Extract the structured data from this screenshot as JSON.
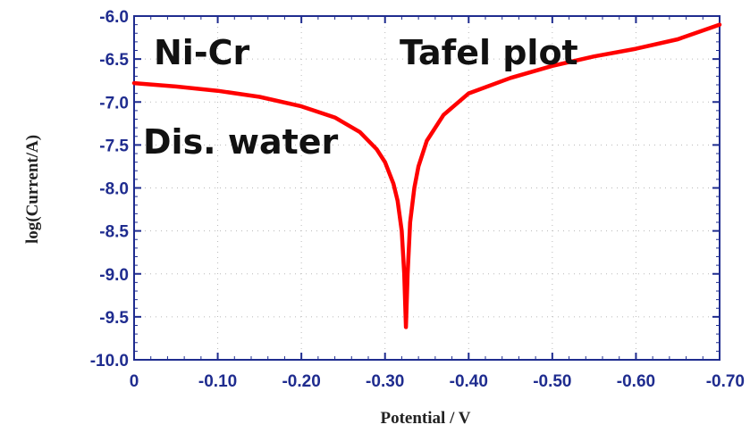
{
  "chart_data": {
    "type": "line",
    "xlabel": "Potential / V",
    "ylabel": "log(Current/A)",
    "xlim": [
      0,
      -0.7
    ],
    "ylim": [
      -10.0,
      -6.0
    ],
    "x_ticks": [
      "0",
      "-0.10",
      "-0.20",
      "-0.30",
      "-0.40",
      "-0.50",
      "-0.60",
      "-0.70"
    ],
    "y_ticks": [
      "-6.0",
      "-6.5",
      "-7.0",
      "-7.5",
      "-8.0",
      "-8.5",
      "-9.0",
      "-9.5",
      "-10.0"
    ],
    "grid": true,
    "annotations": [
      "Ni-Cr",
      "Tafel plot",
      "Dis. water"
    ],
    "series": [
      {
        "color": "#ff0000",
        "x": [
          0,
          -0.05,
          -0.1,
          -0.15,
          -0.2,
          -0.24,
          -0.27,
          -0.29,
          -0.3,
          -0.31,
          -0.315,
          -0.32,
          -0.323,
          -0.325,
          -0.327,
          -0.33,
          -0.335,
          -0.34,
          -0.35,
          -0.37,
          -0.4,
          -0.45,
          -0.5,
          -0.55,
          -0.6,
          -0.65,
          -0.7
        ],
        "y": [
          -6.78,
          -6.82,
          -6.87,
          -6.94,
          -7.05,
          -7.18,
          -7.35,
          -7.55,
          -7.7,
          -7.95,
          -8.15,
          -8.5,
          -9.0,
          -9.62,
          -9.0,
          -8.4,
          -8.0,
          -7.75,
          -7.45,
          -7.15,
          -6.9,
          -6.72,
          -6.58,
          -6.47,
          -6.38,
          -6.27,
          -6.1
        ]
      }
    ]
  }
}
